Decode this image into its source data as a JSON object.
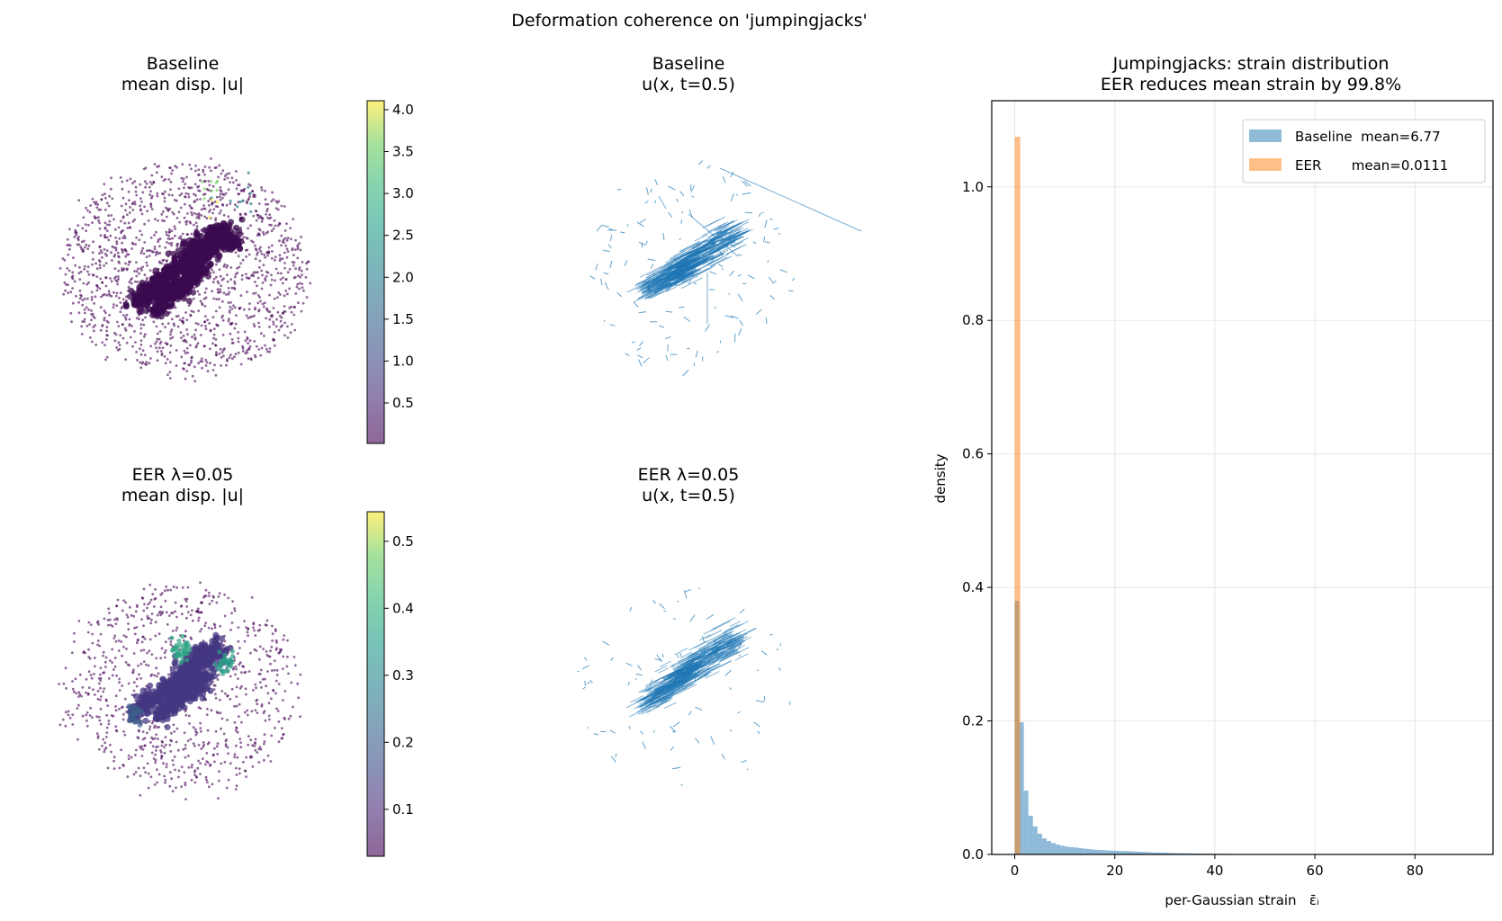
{
  "suptitle": "Deformation coherence on 'jumpingjacks'",
  "chart_data": [
    {
      "type": "scatter",
      "panel": "top-left",
      "title": [
        "Baseline",
        "mean disp. |u|"
      ],
      "colormap": "viridis",
      "colorbar": {
        "range": [
          0.017,
          4.107
        ],
        "ticks": [
          "0.5",
          "1.0",
          "1.5",
          "2.0",
          "2.5",
          "3.0",
          "3.5",
          "4.0"
        ]
      },
      "axes_visible": false
    },
    {
      "type": "quiver",
      "panel": "top-middle",
      "title": [
        "Baseline",
        "u(x, t=0.5)"
      ],
      "color": "#1f77b4",
      "axes_visible": false
    },
    {
      "type": "scatter",
      "panel": "bottom-left",
      "title": [
        "EER λ=0.05",
        "mean disp. |u|"
      ],
      "colormap": "viridis",
      "colorbar": {
        "range": [
          0.03,
          0.544
        ],
        "ticks": [
          "0.1",
          "0.2",
          "0.3",
          "0.4",
          "0.5"
        ]
      },
      "axes_visible": false
    },
    {
      "type": "quiver",
      "panel": "bottom-middle",
      "title": [
        "EER λ=0.05",
        "u(x, t=0.5)"
      ],
      "color": "#1f77b4",
      "axes_visible": false
    },
    {
      "type": "histogram",
      "panel": "right",
      "title": [
        "Jumpingjacks: strain distribution",
        "EER reduces mean strain by 99.8%"
      ],
      "xlabel": "per-Gaussian strain   ε̄ᵢ",
      "ylabel": "density",
      "xlim": [
        -4.6,
        95.6
      ],
      "ylim": [
        0,
        1.129
      ],
      "xticks": [
        "0",
        "20",
        "40",
        "60",
        "80"
      ],
      "yticks": [
        "0.0",
        "0.2",
        "0.4",
        "0.6",
        "0.8",
        "1.0"
      ],
      "grid": true,
      "legend_position": "top-right",
      "series": [
        {
          "name": "Baseline",
          "legend": "Baseline  mean=6.77",
          "color": "#1f77b4",
          "alpha": 0.5,
          "bin_start": 0,
          "bin_width": 0.91,
          "values": [
            0.38,
            0.198,
            0.0955,
            0.058,
            0.042,
            0.031,
            0.024,
            0.02,
            0.017,
            0.0148,
            0.013,
            0.0117,
            0.0108,
            0.0104,
            0.0094,
            0.0085,
            0.008,
            0.0072,
            0.0067,
            0.0065,
            0.006,
            0.0057,
            0.0054,
            0.0052,
            0.005,
            0.0047,
            0.0044,
            0.004,
            0.0038,
            0.0035,
            0.003,
            0.0028,
            0.0027,
            0.0025,
            0.0022,
            0.002,
            0.0018,
            0.0017,
            0.0016,
            0.0015,
            0.0014,
            0.0013,
            0.0012,
            0.0011,
            0.001,
            0.0009,
            0.0008,
            0.0008,
            0.0007,
            0.0006,
            0.0006,
            0.0005,
            0.0005,
            0.0004,
            0.0004,
            0.0003
          ]
        },
        {
          "name": "EER",
          "legend": "EER       mean=0.0111",
          "color": "#ff7f0e",
          "alpha": 0.5,
          "bin_start": 0,
          "bin_width": 1.1,
          "values": [
            1.075
          ]
        }
      ]
    }
  ]
}
